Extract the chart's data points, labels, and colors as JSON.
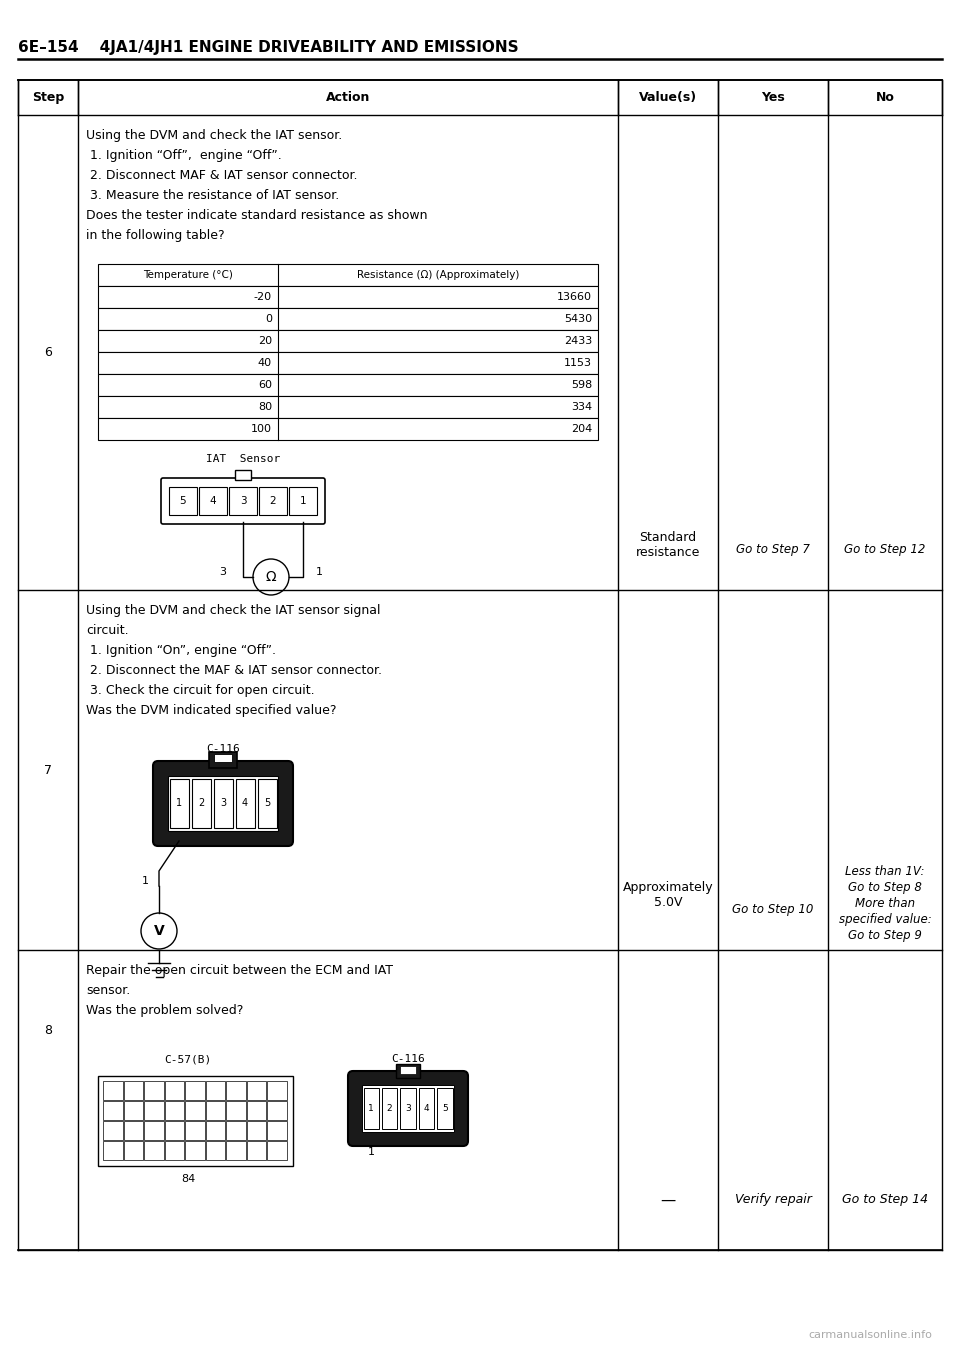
{
  "page_title": "6E–154    4JA1/4JH1 ENGINE DRIVEABILITY AND EMISSIONS",
  "background": "#ffffff",
  "step6_action_lines": [
    "Using the DVM and check the IAT sensor.",
    " 1. Ignition “Off”,  engine “Off”.",
    " 2. Disconnect MAF & IAT sensor connector.",
    " 3. Measure the resistance of IAT sensor.",
    "Does the tester indicate standard resistance as shown",
    "in the following table?"
  ],
  "temp_table_headers": [
    "Temperature (°C)",
    "Resistance (Ω) (Approximately)"
  ],
  "temp_table_data": [
    [
      "-20",
      "13660"
    ],
    [
      "0",
      "5430"
    ],
    [
      "20",
      "2433"
    ],
    [
      "40",
      "1153"
    ],
    [
      "60",
      "598"
    ],
    [
      "80",
      "334"
    ],
    [
      "100",
      "204"
    ]
  ],
  "step6_value": "Standard\nresistance",
  "step6_yes": "Go to Step 7",
  "step6_no": "Go to Step 12",
  "step7_action_lines": [
    "Using the DVM and check the IAT sensor signal",
    "circuit.",
    " 1. Ignition “On”, engine “Off”.",
    " 2. Disconnect the MAF & IAT sensor connector.",
    " 3. Check the circuit for open circuit.",
    "Was the DVM indicated specified value?"
  ],
  "step7_value": "Approximately\n5.0V",
  "step7_yes": "Go to Step 10",
  "step7_no": "Less than 1V:\nGo to Step 8\nMore than\nspecified value:\nGo to Step 9",
  "step8_action_lines": [
    "Repair the open circuit between the ECM and IAT",
    "sensor.",
    "Was the problem solved?"
  ],
  "step8_value": "—",
  "step8_yes": "Verify repair",
  "step8_no": "Go to Step 14"
}
